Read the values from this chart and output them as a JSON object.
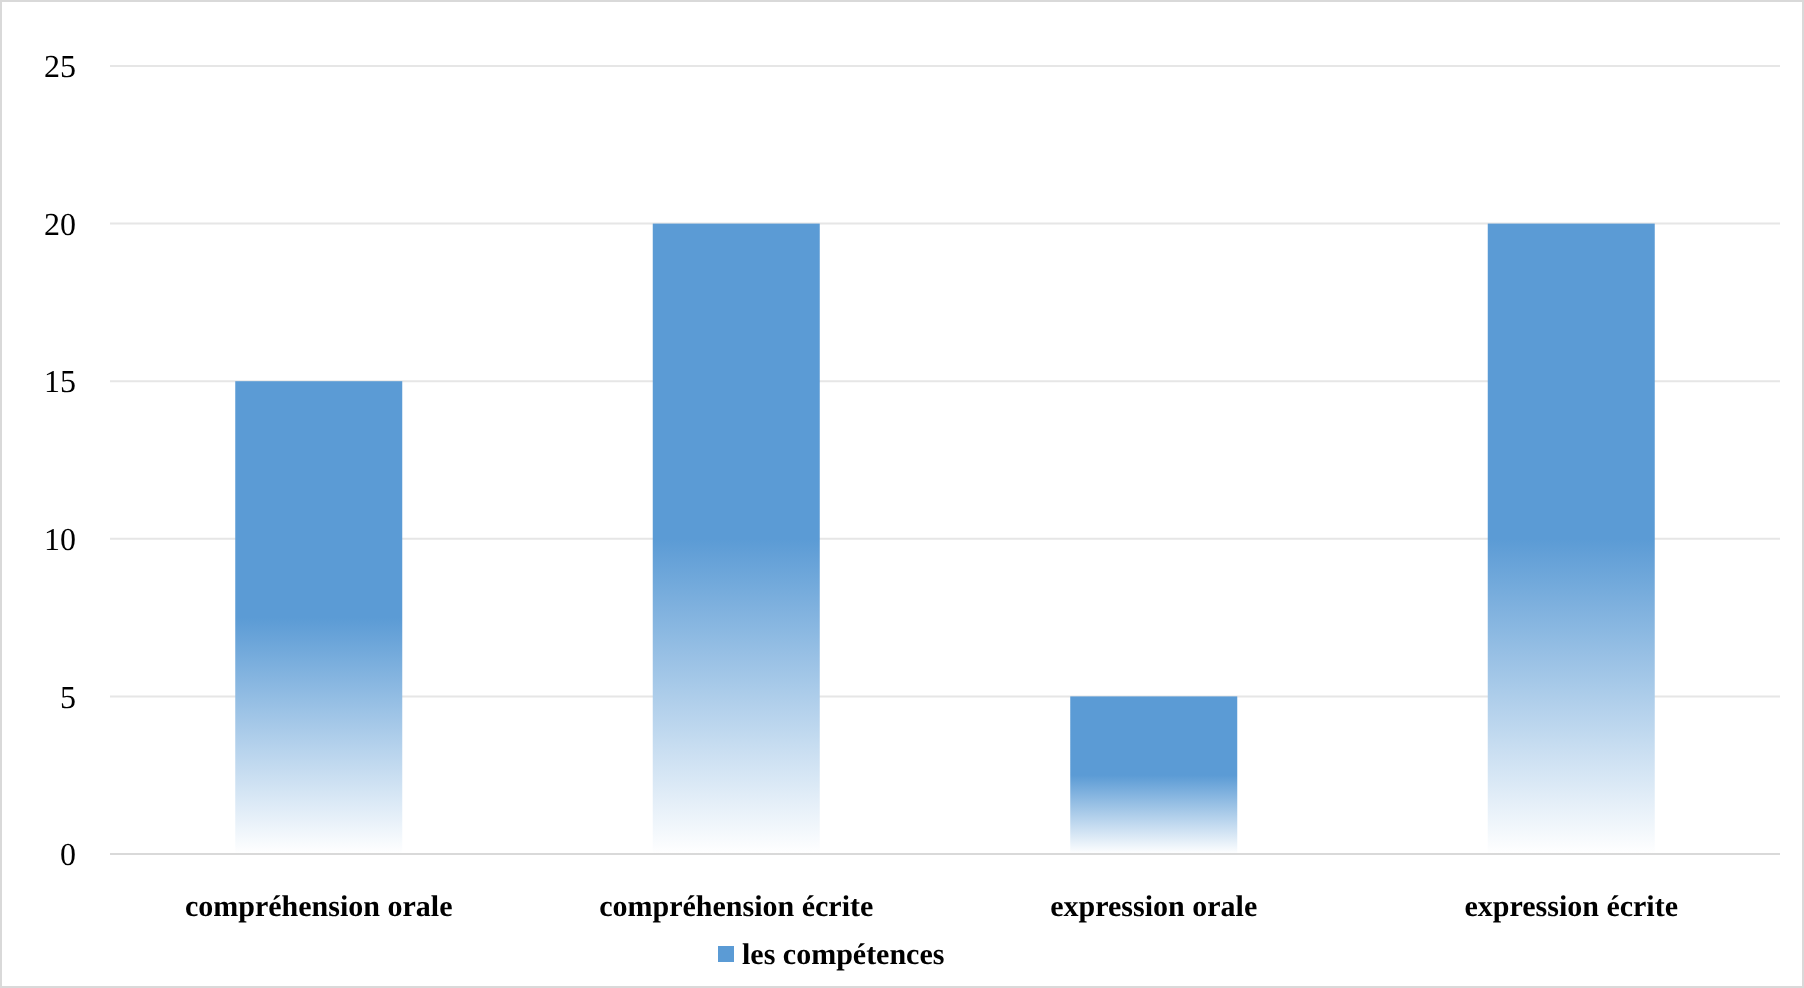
{
  "chart_data": {
    "type": "bar",
    "categories": [
      "compréhension orale",
      "compréhension écrite",
      "expression orale",
      "expression écrite"
    ],
    "series": [
      {
        "name": "les compétences",
        "color": "#5b9bd5",
        "values": [
          15,
          20,
          5,
          20
        ]
      }
    ],
    "ylim": [
      0,
      25
    ],
    "yticks": [
      0,
      5,
      10,
      15,
      20,
      25
    ],
    "grid": "y",
    "legend": "bottom"
  }
}
